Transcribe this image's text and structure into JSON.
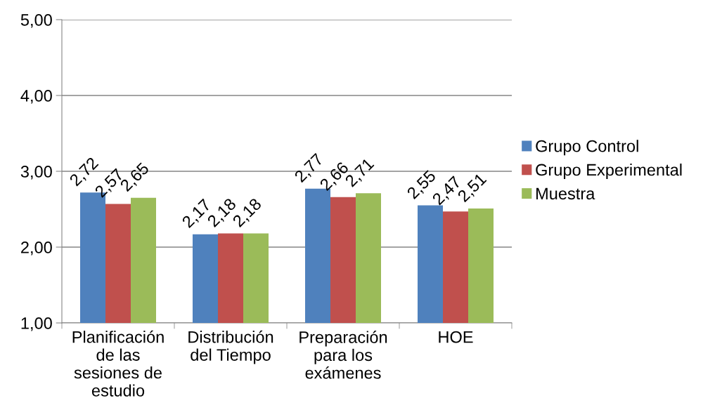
{
  "chart_data": {
    "type": "bar",
    "categories": [
      "Planificación\nde las\nsesiones de\nestudio",
      "Distribución\ndel Tiempo",
      "Preparación\npara los\nexámenes",
      "HOE"
    ],
    "series": [
      {
        "name": "Grupo Control",
        "color": "#4f81bd",
        "values": [
          2.72,
          2.17,
          2.77,
          2.55
        ],
        "value_labels": [
          "2,72",
          "2,17",
          "2,77",
          "2,55"
        ]
      },
      {
        "name": "Grupo Experimental",
        "color": "#c0504d",
        "values": [
          2.57,
          2.18,
          2.66,
          2.47
        ],
        "value_labels": [
          "2,57",
          "2,18",
          "2,66",
          "2,47"
        ]
      },
      {
        "name": "Muestra",
        "color": "#9bbb59",
        "values": [
          2.65,
          2.18,
          2.71,
          2.51
        ],
        "value_labels": [
          "2,65",
          "2,18",
          "2,71",
          "2,51"
        ]
      }
    ],
    "ylim": [
      1,
      5
    ],
    "yticks": [
      {
        "value": 1,
        "label": "1,00"
      },
      {
        "value": 2,
        "label": "2,00"
      },
      {
        "value": 3,
        "label": "3,00"
      },
      {
        "value": 4,
        "label": "4,00"
      },
      {
        "value": 5,
        "label": "5,00"
      }
    ],
    "grid": "y",
    "legend": "right"
  }
}
